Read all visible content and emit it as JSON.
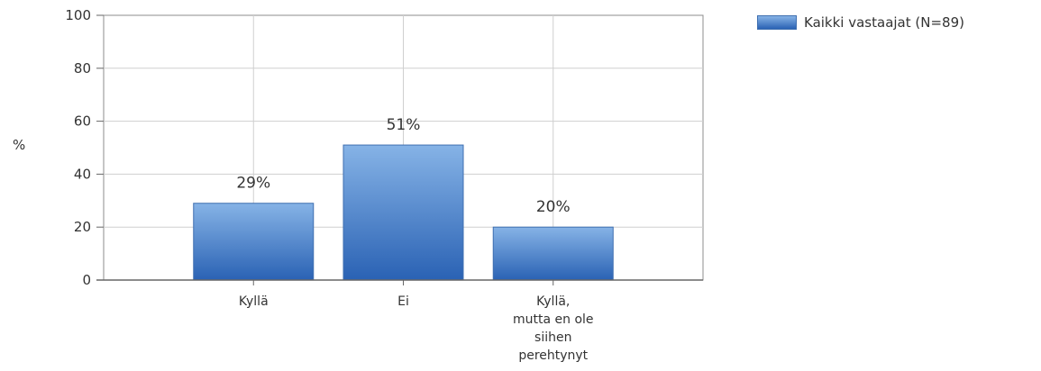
{
  "chart_data": {
    "type": "bar",
    "categories": [
      [
        "Kyllä"
      ],
      [
        "Ei"
      ],
      [
        "Kyllä,",
        "mutta en ole",
        "siihen",
        "perehtynyt"
      ]
    ],
    "series": [
      {
        "name": "Kaikki vastaajat (N=89)",
        "values": [
          29,
          51,
          20
        ]
      }
    ],
    "data_labels": [
      "29%",
      "51%",
      "20%"
    ],
    "ylabel": "%",
    "ylim": [
      0,
      100
    ],
    "yticks": [
      "0",
      "20",
      "40",
      "60",
      "80",
      "100"
    ],
    "grid": true,
    "legend_position": "top-right",
    "colors": {
      "bar_top": "#86b3e6",
      "bar_bottom": "#2a62b4",
      "grid": "#cfcfcf",
      "axis": "#666666"
    }
  }
}
